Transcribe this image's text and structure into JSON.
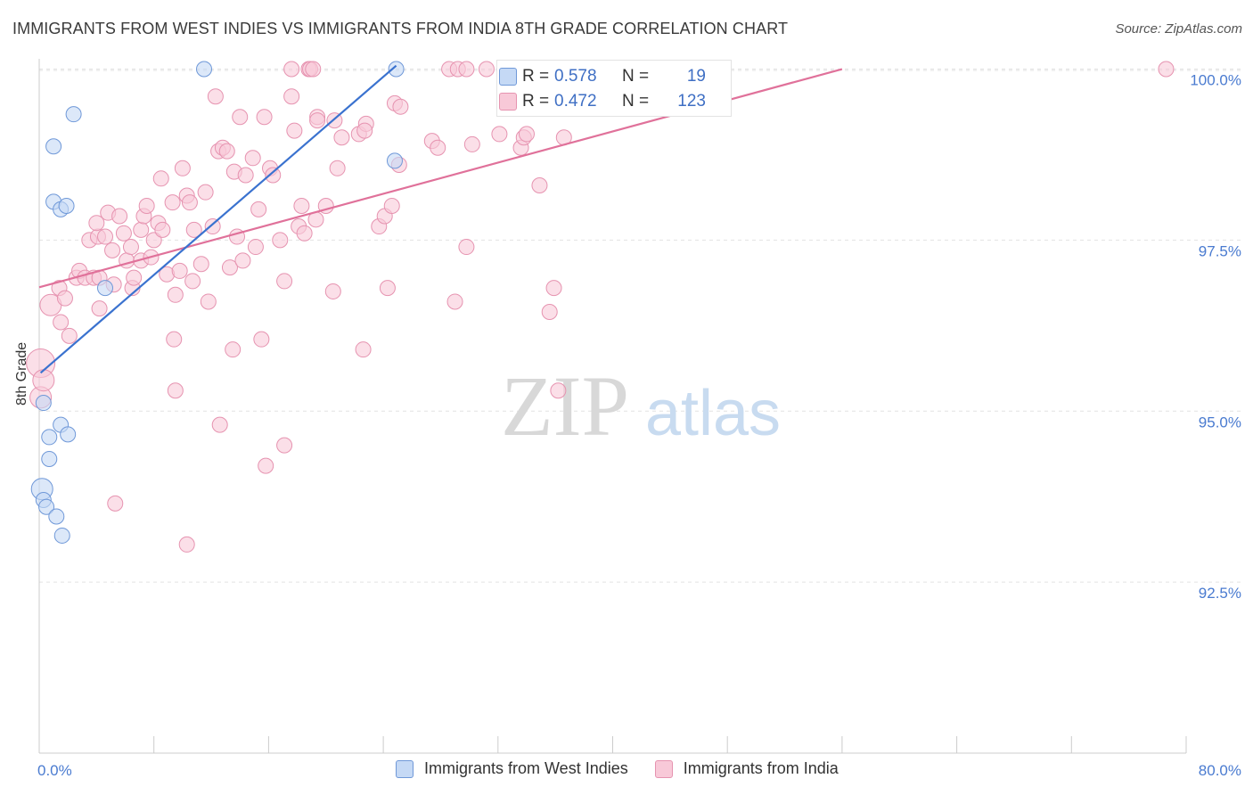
{
  "title": "IMMIGRANTS FROM WEST INDIES VS IMMIGRANTS FROM INDIA 8TH GRADE CORRELATION CHART",
  "source": "Source: ZipAtlas.com",
  "watermark": {
    "zip": "ZIP",
    "atlas": "atlas"
  },
  "stats": {
    "west_indies": {
      "r_label": "R =",
      "r_value": "0.578",
      "n_label": "N =",
      "n_value": "19"
    },
    "india": {
      "r_label": "R =",
      "r_value": "0.472",
      "n_label": "N =",
      "n_value": "123"
    }
  },
  "legend": {
    "west_indies": "Immigrants from West Indies",
    "india": "Immigrants from India"
  },
  "colors": {
    "west_indies_fill": "#c5d9f5",
    "west_indies_stroke": "#6f98d8",
    "west_indies_line": "#3a72cf",
    "india_fill": "#f8c9d8",
    "india_stroke": "#e693b0",
    "india_line": "#e0719a",
    "axis_text": "#4a7bd0"
  },
  "chart_data": {
    "type": "scatter",
    "title": "IMMIGRANTS FROM WEST INDIES VS IMMIGRANTS FROM INDIA 8TH GRADE CORRELATION CHART",
    "xlabel": "",
    "ylabel": "8th Grade",
    "xlim": [
      0,
      80
    ],
    "ylim": [
      90.0,
      100.15
    ],
    "x_tick_labels": {
      "min": "0.0%",
      "max": "80.0%"
    },
    "y_ticks": [
      {
        "value": 92.5,
        "label": "92.5%"
      },
      {
        "value": 95.0,
        "label": "95.0%"
      },
      {
        "value": 97.5,
        "label": "97.5%"
      },
      {
        "value": 100.0,
        "label": "100.0%"
      }
    ],
    "grid": true,
    "series": [
      {
        "name": "Immigrants from West Indies",
        "color": "blue",
        "trend": {
          "x": [
            0.1,
            24.9
          ],
          "y": [
            95.56,
            100.05
          ]
        },
        "points": [
          {
            "x": 0.2,
            "y": 93.86,
            "s": "l"
          },
          {
            "x": 0.3,
            "y": 93.7
          },
          {
            "x": 0.5,
            "y": 93.6
          },
          {
            "x": 1.2,
            "y": 93.46
          },
          {
            "x": 1.6,
            "y": 93.18
          },
          {
            "x": 0.7,
            "y": 94.3
          },
          {
            "x": 0.7,
            "y": 94.62
          },
          {
            "x": 1.5,
            "y": 94.8
          },
          {
            "x": 2.0,
            "y": 94.66
          },
          {
            "x": 0.3,
            "y": 95.12
          },
          {
            "x": 1.0,
            "y": 98.06
          },
          {
            "x": 1.5,
            "y": 97.95
          },
          {
            "x": 1.9,
            "y": 98.0
          },
          {
            "x": 1.0,
            "y": 98.87
          },
          {
            "x": 2.4,
            "y": 99.34
          },
          {
            "x": 4.6,
            "y": 96.8
          },
          {
            "x": 11.5,
            "y": 100.0
          },
          {
            "x": 24.9,
            "y": 100.0
          },
          {
            "x": 24.8,
            "y": 98.66
          }
        ]
      },
      {
        "name": "Immigrants from India",
        "color": "pink",
        "trend": {
          "x": [
            0.0,
            56.0
          ],
          "y": [
            96.81,
            100.0
          ]
        },
        "points": [
          {
            "x": 0.1,
            "y": 95.7,
            "s": "xl"
          },
          {
            "x": 0.1,
            "y": 95.2,
            "s": "l"
          },
          {
            "x": 0.3,
            "y": 95.45,
            "s": "l"
          },
          {
            "x": 0.8,
            "y": 96.55,
            "s": "l"
          },
          {
            "x": 1.4,
            "y": 96.8
          },
          {
            "x": 1.5,
            "y": 96.3
          },
          {
            "x": 1.8,
            "y": 96.65
          },
          {
            "x": 2.1,
            "y": 96.1
          },
          {
            "x": 2.6,
            "y": 96.95
          },
          {
            "x": 2.8,
            "y": 97.05
          },
          {
            "x": 3.2,
            "y": 96.95
          },
          {
            "x": 3.5,
            "y": 97.5
          },
          {
            "x": 3.8,
            "y": 96.95
          },
          {
            "x": 4.1,
            "y": 97.55
          },
          {
            "x": 4.2,
            "y": 96.95
          },
          {
            "x": 4.2,
            "y": 96.5
          },
          {
            "x": 4.6,
            "y": 97.55
          },
          {
            "x": 4.8,
            "y": 97.9
          },
          {
            "x": 5.1,
            "y": 97.35
          },
          {
            "x": 5.2,
            "y": 96.85
          },
          {
            "x": 4.0,
            "y": 97.75
          },
          {
            "x": 5.6,
            "y": 97.85
          },
          {
            "x": 5.9,
            "y": 97.6
          },
          {
            "x": 6.1,
            "y": 97.2
          },
          {
            "x": 6.4,
            "y": 97.4
          },
          {
            "x": 6.5,
            "y": 96.8
          },
          {
            "x": 6.6,
            "y": 96.95
          },
          {
            "x": 7.1,
            "y": 97.65
          },
          {
            "x": 7.1,
            "y": 97.2
          },
          {
            "x": 7.3,
            "y": 97.85
          },
          {
            "x": 7.5,
            "y": 98.0
          },
          {
            "x": 7.8,
            "y": 97.25
          },
          {
            "x": 8.0,
            "y": 97.5
          },
          {
            "x": 8.3,
            "y": 97.75
          },
          {
            "x": 8.5,
            "y": 98.4
          },
          {
            "x": 8.6,
            "y": 97.65
          },
          {
            "x": 8.9,
            "y": 97.0
          },
          {
            "x": 9.3,
            "y": 98.05
          },
          {
            "x": 9.4,
            "y": 96.05
          },
          {
            "x": 9.5,
            "y": 96.7
          },
          {
            "x": 9.8,
            "y": 97.05
          },
          {
            "x": 10.0,
            "y": 98.55
          },
          {
            "x": 10.3,
            "y": 98.15
          },
          {
            "x": 10.5,
            "y": 98.05
          },
          {
            "x": 10.7,
            "y": 96.9
          },
          {
            "x": 10.8,
            "y": 97.65
          },
          {
            "x": 11.3,
            "y": 97.15
          },
          {
            "x": 11.6,
            "y": 98.2
          },
          {
            "x": 11.8,
            "y": 96.6
          },
          {
            "x": 12.1,
            "y": 97.7
          },
          {
            "x": 12.3,
            "y": 99.6
          },
          {
            "x": 12.5,
            "y": 98.8
          },
          {
            "x": 12.8,
            "y": 98.85
          },
          {
            "x": 13.1,
            "y": 98.8
          },
          {
            "x": 13.3,
            "y": 97.1
          },
          {
            "x": 13.5,
            "y": 95.9
          },
          {
            "x": 13.6,
            "y": 98.5
          },
          {
            "x": 13.8,
            "y": 97.55
          },
          {
            "x": 14.0,
            "y": 99.3
          },
          {
            "x": 14.2,
            "y": 97.2
          },
          {
            "x": 14.4,
            "y": 98.45
          },
          {
            "x": 14.9,
            "y": 98.7
          },
          {
            "x": 15.1,
            "y": 97.4
          },
          {
            "x": 15.3,
            "y": 97.95
          },
          {
            "x": 15.5,
            "y": 96.05
          },
          {
            "x": 15.7,
            "y": 99.3
          },
          {
            "x": 16.1,
            "y": 98.55
          },
          {
            "x": 16.3,
            "y": 98.45
          },
          {
            "x": 16.8,
            "y": 97.5
          },
          {
            "x": 17.1,
            "y": 96.9
          },
          {
            "x": 17.6,
            "y": 100.0
          },
          {
            "x": 17.6,
            "y": 99.6
          },
          {
            "x": 17.8,
            "y": 99.1
          },
          {
            "x": 18.1,
            "y": 97.7
          },
          {
            "x": 18.3,
            "y": 98.0
          },
          {
            "x": 18.5,
            "y": 97.6
          },
          {
            "x": 18.8,
            "y": 100.0
          },
          {
            "x": 18.9,
            "y": 100.0
          },
          {
            "x": 19.1,
            "y": 100.0
          },
          {
            "x": 19.3,
            "y": 97.8
          },
          {
            "x": 19.4,
            "y": 99.3
          },
          {
            "x": 20.0,
            "y": 98.0
          },
          {
            "x": 20.5,
            "y": 96.75
          },
          {
            "x": 20.6,
            "y": 99.25
          },
          {
            "x": 20.8,
            "y": 98.55
          },
          {
            "x": 21.1,
            "y": 99.0
          },
          {
            "x": 22.3,
            "y": 99.05
          },
          {
            "x": 22.6,
            "y": 95.9
          },
          {
            "x": 22.8,
            "y": 99.2
          },
          {
            "x": 23.7,
            "y": 97.7
          },
          {
            "x": 24.1,
            "y": 97.85
          },
          {
            "x": 24.3,
            "y": 96.8
          },
          {
            "x": 24.6,
            "y": 98.0
          },
          {
            "x": 24.8,
            "y": 99.5
          },
          {
            "x": 25.2,
            "y": 99.45
          },
          {
            "x": 25.1,
            "y": 98.6
          },
          {
            "x": 27.4,
            "y": 98.95
          },
          {
            "x": 27.8,
            "y": 98.85
          },
          {
            "x": 28.6,
            "y": 100.0
          },
          {
            "x": 29.0,
            "y": 96.6
          },
          {
            "x": 29.2,
            "y": 100.0
          },
          {
            "x": 29.8,
            "y": 100.0
          },
          {
            "x": 29.8,
            "y": 97.4
          },
          {
            "x": 30.2,
            "y": 98.9
          },
          {
            "x": 31.2,
            "y": 100.0
          },
          {
            "x": 32.1,
            "y": 99.05
          },
          {
            "x": 33.6,
            "y": 98.85
          },
          {
            "x": 33.8,
            "y": 99.0
          },
          {
            "x": 34.0,
            "y": 99.05
          },
          {
            "x": 34.9,
            "y": 98.3
          },
          {
            "x": 35.6,
            "y": 96.45
          },
          {
            "x": 35.9,
            "y": 96.8
          },
          {
            "x": 36.2,
            "y": 95.3
          },
          {
            "x": 36.6,
            "y": 99.0
          },
          {
            "x": 78.6,
            "y": 100.0
          },
          {
            "x": 9.5,
            "y": 95.3
          },
          {
            "x": 12.6,
            "y": 94.8
          },
          {
            "x": 17.1,
            "y": 94.5
          },
          {
            "x": 15.8,
            "y": 94.2
          },
          {
            "x": 5.3,
            "y": 93.65
          },
          {
            "x": 10.3,
            "y": 93.05
          },
          {
            "x": 22.7,
            "y": 99.1
          },
          {
            "x": 19.4,
            "y": 99.25
          }
        ]
      }
    ]
  }
}
